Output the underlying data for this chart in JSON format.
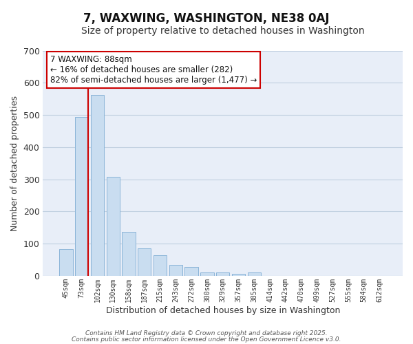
{
  "title": "7, WAXWING, WASHINGTON, NE38 0AJ",
  "subtitle": "Size of property relative to detached houses in Washington",
  "xlabel": "Distribution of detached houses by size in Washington",
  "ylabel": "Number of detached properties",
  "categories": [
    "45sqm",
    "73sqm",
    "102sqm",
    "130sqm",
    "158sqm",
    "187sqm",
    "215sqm",
    "243sqm",
    "272sqm",
    "300sqm",
    "329sqm",
    "357sqm",
    "385sqm",
    "414sqm",
    "442sqm",
    "470sqm",
    "499sqm",
    "527sqm",
    "555sqm",
    "584sqm",
    "612sqm"
  ],
  "values": [
    83,
    493,
    562,
    308,
    137,
    85,
    63,
    35,
    28,
    10,
    10,
    6,
    10,
    0,
    0,
    0,
    0,
    0,
    0,
    0,
    0
  ],
  "bar_color": "#c9ddf0",
  "bar_edge_color": "#8ab4d8",
  "bg_color": "#e8eef8",
  "fig_bg_color": "#ffffff",
  "grid_color": "#c0cfe0",
  "vline_color": "#cc0000",
  "annotation_title": "7 WAXWING: 88sqm",
  "annotation_line2": "← 16% of detached houses are smaller (282)",
  "annotation_line3": "82% of semi-detached houses are larger (1,477) →",
  "annotation_box_edge": "#cc0000",
  "ylim": [
    0,
    700
  ],
  "yticks": [
    0,
    100,
    200,
    300,
    400,
    500,
    600,
    700
  ],
  "footer1": "Contains HM Land Registry data © Crown copyright and database right 2025.",
  "footer2": "Contains public sector information licensed under the Open Government Licence v3.0.",
  "title_fontsize": 12,
  "subtitle_fontsize": 10
}
